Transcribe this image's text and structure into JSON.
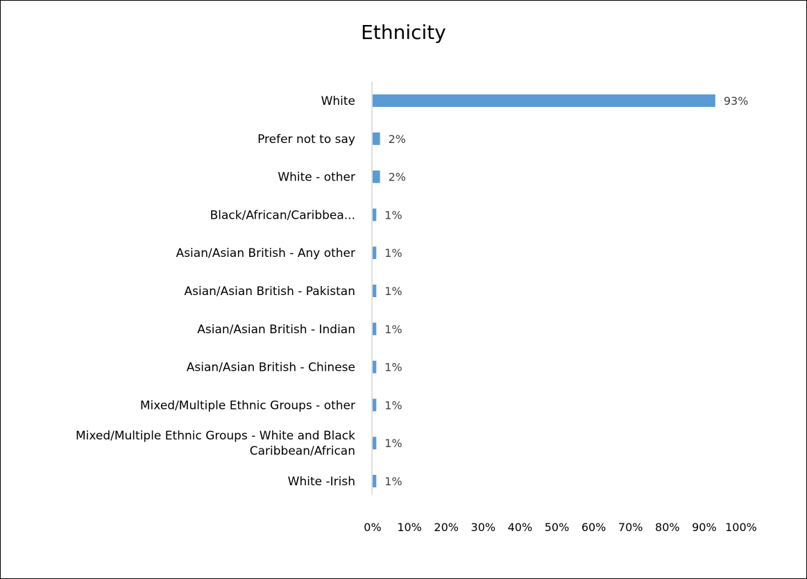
{
  "chart_data": {
    "type": "bar",
    "orientation": "horizontal",
    "title": "Ethnicity",
    "xlabel": "",
    "ylabel": "",
    "categories": [
      "White",
      "Prefer not to say",
      "White - other",
      "Black/African/Caribbea...",
      "Asian/Asian British - Any other",
      "Asian/Asian British - Pakistan",
      "Asian/Asian British - Indian",
      "Asian/Asian British - Chinese",
      "Mixed/Multiple Ethnic Groups - other",
      "Mixed/Multiple Ethnic Groups - White and Black Caribbean/African",
      "White -Irish"
    ],
    "category_lines": [
      [
        "White"
      ],
      [
        "Prefer not to say"
      ],
      [
        "White - other"
      ],
      [
        "Black/African/Caribbea..."
      ],
      [
        "Asian/Asian British - Any other"
      ],
      [
        "Asian/Asian British - Pakistan"
      ],
      [
        "Asian/Asian British - Indian"
      ],
      [
        "Asian/Asian British - Chinese"
      ],
      [
        "Mixed/Multiple Ethnic Groups - other"
      ],
      [
        "Mixed/Multiple Ethnic Groups - White and Black",
        "Caribbean/African"
      ],
      [
        "White -Irish"
      ]
    ],
    "values": [
      93,
      2,
      2,
      1,
      1,
      1,
      1,
      1,
      1,
      1,
      1
    ],
    "data_labels": [
      "93%",
      "2%",
      "2%",
      "1%",
      "1%",
      "1%",
      "1%",
      "1%",
      "1%",
      "1%",
      "1%"
    ],
    "xlim": [
      0,
      100
    ],
    "xticks": [
      "0%",
      "10%",
      "20%",
      "30%",
      "40%",
      "50%",
      "60%",
      "70%",
      "80%",
      "90%",
      "100%"
    ],
    "bar_color": "#5b9bd5",
    "grid": false,
    "legend": "none"
  }
}
